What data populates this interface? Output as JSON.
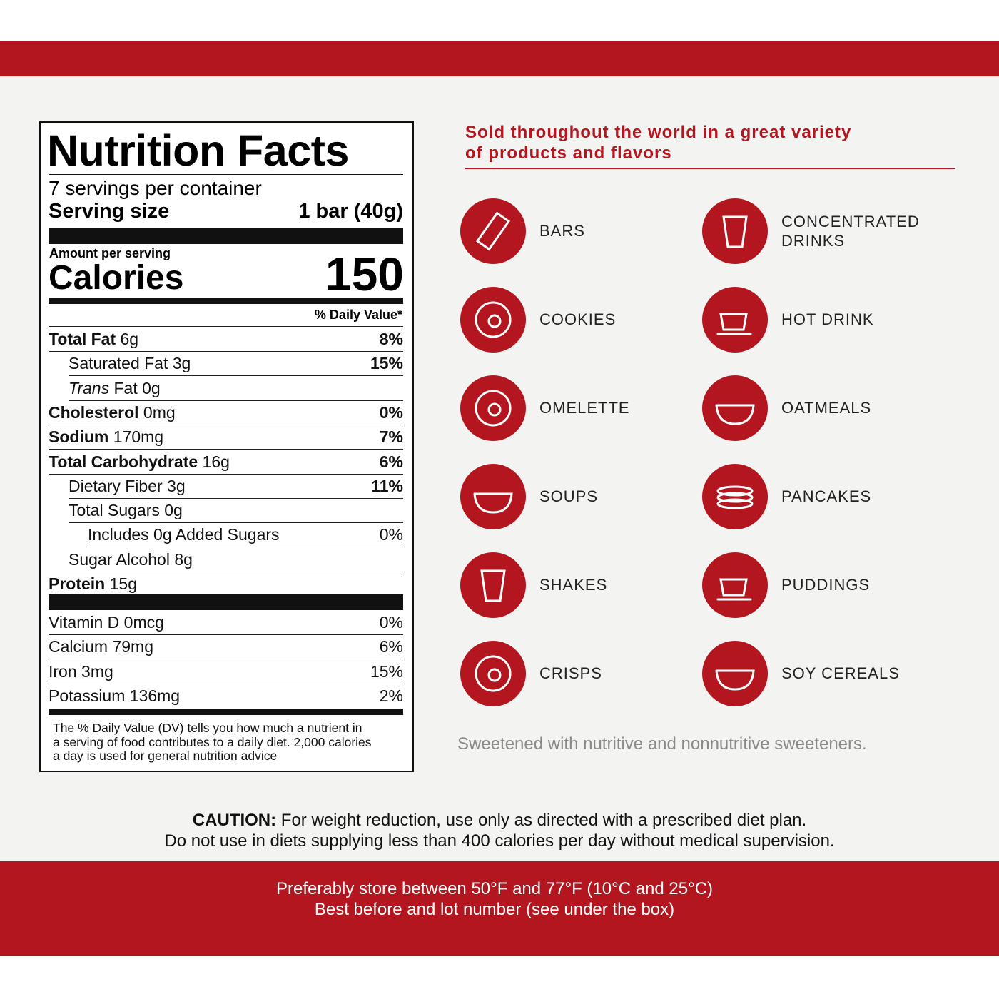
{
  "nutrition": {
    "title": "Nutrition Facts",
    "servings": "7 servings per container",
    "serving_size_label": "Serving size",
    "serving_size_value": "1 bar (40g)",
    "amount_per_serving": "Amount per serving",
    "calories_label": "Calories",
    "calories_value": "150",
    "daily_value_header": "% Daily Value*",
    "nutrients": [
      {
        "name": "Total Fat",
        "amount": "6g",
        "dv": "8%"
      },
      {
        "name": "Saturated Fat 3g",
        "dv": "15%"
      },
      {
        "name_italic": "Trans",
        "name": "Fat 0g"
      },
      {
        "name": "Cholesterol",
        "amount": "0mg",
        "dv": "0%"
      },
      {
        "name": "Sodium",
        "amount": "170mg",
        "dv": "7%"
      },
      {
        "name": "Total Carbohydrate",
        "amount": "16g",
        "dv": "6%"
      },
      {
        "name": "Dietary Fiber 3g",
        "dv": "11%"
      },
      {
        "name": "Total Sugars 0g"
      },
      {
        "name": "Includes 0g Added Sugars",
        "dv": "0%"
      },
      {
        "name": "Sugar Alcohol 8g"
      },
      {
        "name": "Protein",
        "amount": "15g"
      }
    ],
    "vitamins": [
      {
        "name": "Vitamin D 0mcg",
        "dv": "0%"
      },
      {
        "name": "Calcium 79mg",
        "dv": "6%"
      },
      {
        "name": "Iron 3mg",
        "dv": "15%"
      },
      {
        "name": "Potassium 136mg",
        "dv": "2%"
      }
    ],
    "footnote": [
      "The % Daily Value (DV) tells you how much a nutrient in",
      "a serving of food contributes to a daily diet. 2,000 calories",
      "a day is used for general nutrition advice"
    ]
  },
  "products": {
    "heading": [
      "Sold throughout the world in a great variety",
      "of products and flavors"
    ],
    "items": [
      "BARS",
      "CONCENTRATED DRINKS",
      "COOKIES",
      "HOT DRINK",
      "OMELETTE",
      "OATMEALS",
      "SOUPS",
      "PANCAKES",
      "SHAKES",
      "PUDDINGS",
      "CRISPS",
      "SOY CEREALS"
    ],
    "note": "Sweetened with nutritive and nonnutritive sweeteners."
  },
  "caution": {
    "label": "CAUTION:",
    "line1": "For weight reduction, use only as directed with a prescribed diet plan.",
    "line2": "Do not use in diets supplying less than 400 calories per day without medical supervision."
  },
  "storage": [
    "Preferably store between 50°F and 77°F (10°C and 25°C)",
    "Best before and lot number (see under the box)"
  ]
}
